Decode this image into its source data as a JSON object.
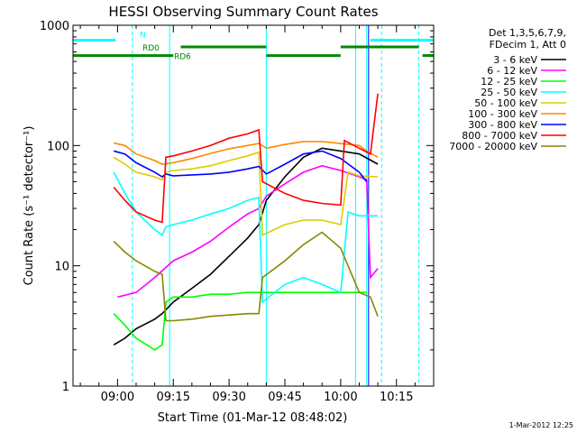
{
  "chart_data": {
    "type": "line",
    "title": "HESSI Observing Summary Count Rates",
    "xlabel": "Start Time (01-Mar-12 08:48:02)",
    "ylabel": "Count Rate (s⁻¹ detector⁻¹)",
    "y_scale": "log",
    "ylim": [
      1,
      1000
    ],
    "y_ticks": [
      "1",
      "10",
      "100",
      "1000"
    ],
    "xlim": [
      "08:48:02",
      "10:25:00"
    ],
    "x_ticks": [
      "09:00",
      "09:15",
      "09:30",
      "09:45",
      "10:00",
      "10:15"
    ],
    "footer": "1-Mar-2012 12:25",
    "legend_header": [
      "Det 1,3,5,6,7,9,",
      "FDecim 1, Att 0"
    ],
    "legend_position": "top-right, outside plot",
    "grid": false,
    "series": [
      {
        "name": "3 - 6 keV",
        "color": "#000000",
        "points": [
          [
            "08:59",
            2.2
          ],
          [
            "09:02",
            2.5
          ],
          [
            "09:05",
            3
          ],
          [
            "09:10",
            3.6
          ],
          [
            "09:12",
            4
          ],
          [
            "09:15",
            5
          ],
          [
            "09:20",
            6.5
          ],
          [
            "09:25",
            8.5
          ],
          [
            "09:30",
            12
          ],
          [
            "09:35",
            17
          ],
          [
            "09:38",
            22
          ],
          [
            "09:40",
            35
          ],
          [
            "09:45",
            55
          ],
          [
            "09:50",
            80
          ],
          [
            "09:55",
            95
          ],
          [
            "10:00",
            90
          ],
          [
            "10:05",
            85
          ],
          [
            "10:10",
            70
          ]
        ]
      },
      {
        "name": "6 - 12 keV",
        "color": "#ff00ff",
        "points": [
          [
            "09:00",
            5.5
          ],
          [
            "09:05",
            6
          ],
          [
            "09:10",
            8
          ],
          [
            "09:15",
            11
          ],
          [
            "09:20",
            13
          ],
          [
            "09:25",
            16
          ],
          [
            "09:30",
            21
          ],
          [
            "09:35",
            27
          ],
          [
            "09:38",
            30
          ],
          [
            "09:40",
            38
          ],
          [
            "09:45",
            48
          ],
          [
            "09:50",
            60
          ],
          [
            "09:55",
            68
          ],
          [
            "10:00",
            62
          ],
          [
            "10:05",
            55
          ],
          [
            "10:07",
            52
          ],
          [
            "10:08",
            8
          ],
          [
            "10:10",
            9.5
          ]
        ]
      },
      {
        "name": "12 - 25 keV",
        "color": "#00ff00",
        "points": [
          [
            "08:59",
            4
          ],
          [
            "09:02",
            3.2
          ],
          [
            "09:05",
            2.5
          ],
          [
            "09:10",
            2
          ],
          [
            "09:12",
            2.2
          ],
          [
            "09:13",
            5
          ],
          [
            "09:15",
            5.5
          ],
          [
            "09:20",
            5.5
          ],
          [
            "09:25",
            5.8
          ],
          [
            "09:30",
            5.8
          ],
          [
            "09:35",
            6
          ],
          [
            "09:38",
            6
          ],
          [
            "09:39",
            6
          ],
          [
            "09:45",
            6
          ],
          [
            "09:50",
            6
          ],
          [
            "09:55",
            6
          ],
          [
            "10:00",
            6
          ],
          [
            "10:05",
            6
          ],
          [
            "10:07",
            6
          ]
        ]
      },
      {
        "name": "25 - 50 keV",
        "color": "#00ffff",
        "points": [
          [
            "08:59",
            60
          ],
          [
            "09:02",
            40
          ],
          [
            "09:05",
            28
          ],
          [
            "09:10",
            20
          ],
          [
            "09:12",
            18
          ],
          [
            "09:13",
            21
          ],
          [
            "09:15",
            22
          ],
          [
            "09:20",
            24
          ],
          [
            "09:25",
            27
          ],
          [
            "09:30",
            30
          ],
          [
            "09:35",
            35
          ],
          [
            "09:38",
            37
          ],
          [
            "09:39",
            5
          ],
          [
            "09:45",
            7
          ],
          [
            "09:50",
            8
          ],
          [
            "09:55",
            7
          ],
          [
            "10:00",
            6
          ],
          [
            "10:02",
            28
          ],
          [
            "10:05",
            26
          ],
          [
            "10:10",
            26
          ]
        ]
      },
      {
        "name": "50 - 100 keV",
        "color": "#ddcc00",
        "points": [
          [
            "08:59",
            80
          ],
          [
            "09:02",
            70
          ],
          [
            "09:05",
            60
          ],
          [
            "09:10",
            55
          ],
          [
            "09:12",
            52
          ],
          [
            "09:13",
            60
          ],
          [
            "09:15",
            62
          ],
          [
            "09:20",
            64
          ],
          [
            "09:25",
            68
          ],
          [
            "09:30",
            75
          ],
          [
            "09:35",
            82
          ],
          [
            "09:38",
            88
          ],
          [
            "09:39",
            18
          ],
          [
            "09:45",
            22
          ],
          [
            "09:50",
            24
          ],
          [
            "09:55",
            24
          ],
          [
            "10:00",
            22
          ],
          [
            "10:02",
            60
          ],
          [
            "10:05",
            56
          ],
          [
            "10:10",
            55
          ]
        ]
      },
      {
        "name": "100 - 300 keV",
        "color": "#ff8800",
        "points": [
          [
            "08:59",
            105
          ],
          [
            "09:02",
            100
          ],
          [
            "09:05",
            85
          ],
          [
            "09:10",
            75
          ],
          [
            "09:12",
            70
          ],
          [
            "09:15",
            72
          ],
          [
            "09:20",
            78
          ],
          [
            "09:25",
            86
          ],
          [
            "09:30",
            94
          ],
          [
            "09:35",
            100
          ],
          [
            "09:38",
            104
          ],
          [
            "09:40",
            95
          ],
          [
            "09:45",
            102
          ],
          [
            "09:50",
            108
          ],
          [
            "09:55",
            108
          ],
          [
            "10:00",
            104
          ],
          [
            "10:05",
            100
          ],
          [
            "10:07",
            90
          ],
          [
            "10:10",
            80
          ]
        ]
      },
      {
        "name": "300 - 800 keV",
        "color": "#0000ff",
        "points": [
          [
            "08:59",
            90
          ],
          [
            "09:02",
            85
          ],
          [
            "09:05",
            72
          ],
          [
            "09:10",
            60
          ],
          [
            "09:12",
            55
          ],
          [
            "09:13",
            58
          ],
          [
            "09:15",
            56
          ],
          [
            "09:20",
            57
          ],
          [
            "09:25",
            58
          ],
          [
            "09:30",
            60
          ],
          [
            "09:35",
            64
          ],
          [
            "09:38",
            67
          ],
          [
            "09:40",
            58
          ],
          [
            "09:45",
            70
          ],
          [
            "09:50",
            85
          ],
          [
            "09:55",
            90
          ],
          [
            "10:00",
            78
          ],
          [
            "10:05",
            60
          ],
          [
            "10:07",
            50
          ]
        ]
      },
      {
        "name": "800 - 7000 keV",
        "color": "#ff0000",
        "points": [
          [
            "08:59",
            45
          ],
          [
            "09:02",
            35
          ],
          [
            "09:05",
            28
          ],
          [
            "09:10",
            24
          ],
          [
            "09:12",
            23
          ],
          [
            "09:13",
            80
          ],
          [
            "09:15",
            82
          ],
          [
            "09:20",
            90
          ],
          [
            "09:25",
            100
          ],
          [
            "09:30",
            115
          ],
          [
            "09:35",
            125
          ],
          [
            "09:38",
            135
          ],
          [
            "09:39",
            50
          ],
          [
            "09:45",
            40
          ],
          [
            "09:50",
            35
          ],
          [
            "09:55",
            33
          ],
          [
            "10:00",
            32
          ],
          [
            "10:01",
            110
          ],
          [
            "10:05",
            95
          ],
          [
            "10:08",
            85
          ],
          [
            "10:10",
            270
          ]
        ]
      },
      {
        "name": "7000 - 20000 keV",
        "color": "#888800",
        "points": [
          [
            "08:59",
            16
          ],
          [
            "09:02",
            13
          ],
          [
            "09:05",
            11
          ],
          [
            "09:10",
            9
          ],
          [
            "09:12",
            8.5
          ],
          [
            "09:13",
            3.5
          ],
          [
            "09:15",
            3.5
          ],
          [
            "09:20",
            3.6
          ],
          [
            "09:25",
            3.8
          ],
          [
            "09:30",
            3.9
          ],
          [
            "09:35",
            4
          ],
          [
            "09:38",
            4
          ],
          [
            "09:39",
            8
          ],
          [
            "09:45",
            11
          ],
          [
            "09:50",
            15
          ],
          [
            "09:55",
            19
          ],
          [
            "10:00",
            14
          ],
          [
            "10:05",
            6
          ],
          [
            "10:08",
            5.5
          ],
          [
            "10:10",
            3.8
          ]
        ]
      }
    ],
    "flag_bars": [
      {
        "label": "N",
        "color": "#00ffff",
        "y": 750,
        "segments": [
          [
            "08:48:02",
            "08:59:30"
          ],
          [
            "10:08",
            "10:25"
          ]
        ]
      },
      {
        "label": "RD0",
        "color": "#008800",
        "y": 660,
        "segments": [
          [
            "09:17",
            "09:40"
          ],
          [
            "10:00",
            "10:21"
          ]
        ]
      },
      {
        "label": "RD6",
        "color": "#008800",
        "y": 560,
        "segments": [
          [
            "08:48:02",
            "09:15"
          ],
          [
            "09:40",
            "10:00"
          ],
          [
            "10:22",
            "10:25"
          ]
        ]
      }
    ],
    "vertical_markers": [
      {
        "time": "08:48:02",
        "color": "#00ffff",
        "style": "solid"
      },
      {
        "time": "09:04",
        "color": "#00ffff",
        "style": "dashed"
      },
      {
        "time": "09:14",
        "color": "#00ffff",
        "style": "solid"
      },
      {
        "time": "09:40",
        "color": "#00ffff",
        "style": "solid"
      },
      {
        "time": "10:04",
        "color": "#00ffff",
        "style": "solid"
      },
      {
        "time": "10:07",
        "color": "#00ffff",
        "style": "solid"
      },
      {
        "time": "10:07:30",
        "color": "#0000ff",
        "style": "solid"
      },
      {
        "time": "10:11",
        "color": "#00ffff",
        "style": "dashed"
      },
      {
        "time": "10:21",
        "color": "#00ffff",
        "style": "dashed"
      }
    ]
  }
}
